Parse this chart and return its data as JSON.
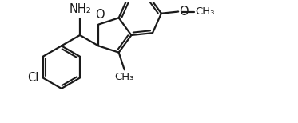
{
  "background_color": "#ffffff",
  "line_color": "#1a1a1a",
  "line_width": 1.6,
  "font_size": 10,
  "figsize": [
    3.73,
    1.54
  ],
  "dpi": 100,
  "xlim": [
    0,
    10
  ],
  "ylim": [
    0,
    4
  ]
}
